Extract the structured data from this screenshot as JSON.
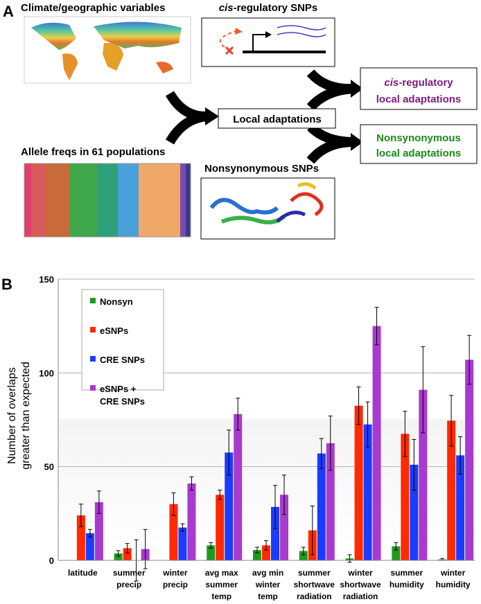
{
  "panel_a": {
    "label": "A",
    "climate_title": "Climate/geographic variables",
    "cis_title": {
      "italic": "cis",
      "rest": "-regulatory SNPs"
    },
    "allele_title": "Allele freqs in 61 populations",
    "nonsyn_title": "Nonsynonymous SNPs",
    "local": "Local adaptations",
    "cis_out": {
      "italic": "cis",
      "rest": "-regulatory",
      "line2": "local adaptations"
    },
    "nonsyn_out": {
      "line1": "Nonsynonymous",
      "line2": "local adaptations"
    }
  },
  "panel_b_label": "B",
  "chart_data": {
    "type": "bar",
    "y_label": "Number of overlaps\ngreater than expected",
    "categories": [
      "latitude",
      "summer\nprecip",
      "winter\nprecip",
      "avg max\nsummer\ntemp",
      "avg min\nwinter\ntemp",
      "summer\nshortwave\nradiation",
      "winter\nshortwave\nradiation",
      "summer\nhumidity",
      "winter\nhumidity"
    ],
    "series": [
      {
        "name": "Nonsyn",
        "color": "#1f9a1f",
        "values": [
          null,
          3.7,
          null,
          8,
          5.5,
          5,
          1,
          7.5,
          0.5
        ],
        "errors": [
          null,
          1.5,
          null,
          1.5,
          1.5,
          2,
          2,
          2,
          0.5
        ]
      },
      {
        "name": "eSNPs",
        "color": "#ff2a00",
        "values": [
          24,
          6.5,
          30,
          35,
          8,
          16,
          82.5,
          67.5,
          74.5
        ],
        "errors": [
          6,
          2.5,
          6,
          2.5,
          2.5,
          13,
          10,
          12,
          13.5
        ]
      },
      {
        "name": "CRE SNPs",
        "color": "#1a3cff",
        "values": [
          14.5,
          0,
          17.5,
          57.5,
          28.5,
          57,
          72.5,
          51,
          56
        ],
        "errors": [
          2,
          11,
          2,
          12,
          11.5,
          8,
          12,
          13.5,
          10
        ]
      },
      {
        "name": "eSNPs +\nCRE SNPs",
        "color": "#a83ad0",
        "values": [
          31,
          6,
          41,
          78,
          35,
          62.5,
          125,
          91,
          107
        ],
        "errors": [
          6,
          10.5,
          3.5,
          8.5,
          10.5,
          14.5,
          10,
          23,
          13
        ]
      }
    ],
    "ylim": [
      0,
      150
    ],
    "yticks": [
      0,
      50,
      100,
      150
    ],
    "grid": true
  }
}
